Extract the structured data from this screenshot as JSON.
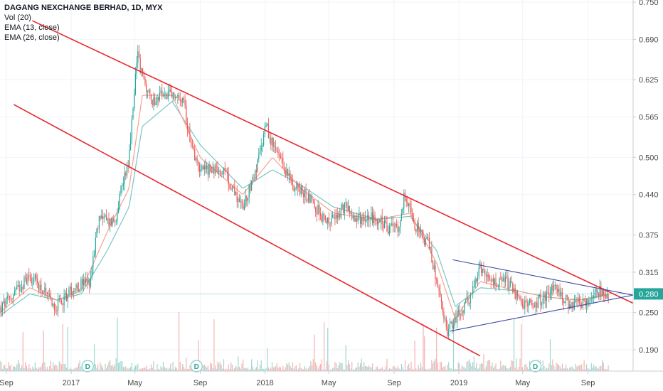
{
  "legend": {
    "title": "DAGANG NEXCHANGE BERHAD, 1D, MYX",
    "indicators": [
      "Vol (20)",
      "EMA (13, close)",
      "EMA (26, close)"
    ]
  },
  "chart_data": {
    "type": "candlestick",
    "symbol": "DAGANG NEXCHANGE BERHAD",
    "interval": "1D",
    "exchange": "MYX",
    "last_price": "0.280",
    "y_ticks": [
      "0.750",
      "0.690",
      "0.625",
      "0.565",
      "0.500",
      "0.440",
      "0.375",
      "0.315",
      "0.250",
      "0.190"
    ],
    "x_ticks": [
      "Sep",
      "2017",
      "May",
      "Sep",
      "2018",
      "May",
      "Sep",
      "2019",
      "May",
      "Sep"
    ],
    "ylim": [
      0.16,
      0.75
    ],
    "event_markers": [
      "D",
      "D",
      "D"
    ],
    "price_path": [
      [
        "2016-08-20",
        0.255
      ],
      [
        "2016-09-05",
        0.27
      ],
      [
        "2016-09-25",
        0.29
      ],
      [
        "2016-10-15",
        0.31
      ],
      [
        "2016-11-01",
        0.295
      ],
      [
        "2016-11-20",
        0.27
      ],
      [
        "2016-12-05",
        0.26
      ],
      [
        "2016-12-20",
        0.275
      ],
      [
        "2017-01-05",
        0.29
      ],
      [
        "2017-01-20",
        0.295
      ],
      [
        "2017-02-05",
        0.3
      ],
      [
        "2017-02-15",
        0.36
      ],
      [
        "2017-02-25",
        0.41
      ],
      [
        "2017-03-10",
        0.395
      ],
      [
        "2017-03-25",
        0.4
      ],
      [
        "2017-04-05",
        0.45
      ],
      [
        "2017-04-20",
        0.5
      ],
      [
        "2017-05-01",
        0.62
      ],
      [
        "2017-05-05",
        0.67
      ],
      [
        "2017-05-15",
        0.63
      ],
      [
        "2017-06-01",
        0.59
      ],
      [
        "2017-06-20",
        0.6
      ],
      [
        "2017-07-10",
        0.6
      ],
      [
        "2017-08-01",
        0.585
      ],
      [
        "2017-08-15",
        0.52
      ],
      [
        "2017-09-01",
        0.48
      ],
      [
        "2017-09-20",
        0.48
      ],
      [
        "2017-10-15",
        0.475
      ],
      [
        "2017-11-01",
        0.45
      ],
      [
        "2017-11-20",
        0.42
      ],
      [
        "2017-12-10",
        0.47
      ],
      [
        "2017-12-25",
        0.51
      ],
      [
        "2018-01-01",
        0.555
      ],
      [
        "2018-01-15",
        0.52
      ],
      [
        "2018-02-01",
        0.49
      ],
      [
        "2018-02-20",
        0.46
      ],
      [
        "2018-03-10",
        0.445
      ],
      [
        "2018-04-01",
        0.43
      ],
      [
        "2018-04-20",
        0.4
      ],
      [
        "2018-05-10",
        0.4
      ],
      [
        "2018-06-01",
        0.42
      ],
      [
        "2018-06-20",
        0.4
      ],
      [
        "2018-07-10",
        0.405
      ],
      [
        "2018-08-01",
        0.4
      ],
      [
        "2018-08-20",
        0.385
      ],
      [
        "2018-09-10",
        0.39
      ],
      [
        "2018-09-20",
        0.44
      ],
      [
        "2018-10-01",
        0.41
      ],
      [
        "2018-10-20",
        0.375
      ],
      [
        "2018-11-05",
        0.36
      ],
      [
        "2018-11-20",
        0.3
      ],
      [
        "2018-12-01",
        0.25
      ],
      [
        "2018-12-10",
        0.22
      ],
      [
        "2018-12-25",
        0.24
      ],
      [
        "2019-01-10",
        0.255
      ],
      [
        "2019-01-25",
        0.28
      ],
      [
        "2019-02-10",
        0.32
      ],
      [
        "2019-02-25",
        0.3
      ],
      [
        "2019-03-15",
        0.295
      ],
      [
        "2019-04-01",
        0.3
      ],
      [
        "2019-04-20",
        0.275
      ],
      [
        "2019-05-05",
        0.26
      ],
      [
        "2019-05-25",
        0.265
      ],
      [
        "2019-06-15",
        0.28
      ],
      [
        "2019-07-05",
        0.29
      ],
      [
        "2019-07-25",
        0.265
      ],
      [
        "2019-08-15",
        0.265
      ],
      [
        "2019-09-05",
        0.27
      ],
      [
        "2019-09-25",
        0.285
      ],
      [
        "2019-10-10",
        0.28
      ]
    ],
    "ema13_path": [
      [
        "2016-08-20",
        0.25
      ],
      [
        "2016-10-15",
        0.29
      ],
      [
        "2016-12-05",
        0.27
      ],
      [
        "2017-01-20",
        0.285
      ],
      [
        "2017-03-10",
        0.38
      ],
      [
        "2017-04-20",
        0.45
      ],
      [
        "2017-05-15",
        0.6
      ],
      [
        "2017-07-10",
        0.6
      ],
      [
        "2017-09-01",
        0.5
      ],
      [
        "2017-11-20",
        0.44
      ],
      [
        "2018-01-15",
        0.5
      ],
      [
        "2018-03-10",
        0.45
      ],
      [
        "2018-05-10",
        0.41
      ],
      [
        "2018-08-01",
        0.4
      ],
      [
        "2018-10-01",
        0.41
      ],
      [
        "2018-11-20",
        0.33
      ],
      [
        "2018-12-25",
        0.24
      ],
      [
        "2019-02-10",
        0.3
      ],
      [
        "2019-04-20",
        0.285
      ],
      [
        "2019-06-15",
        0.275
      ],
      [
        "2019-08-15",
        0.27
      ],
      [
        "2019-10-10",
        0.28
      ]
    ],
    "ema26_path": [
      [
        "2016-08-20",
        0.245
      ],
      [
        "2016-10-15",
        0.28
      ],
      [
        "2016-12-05",
        0.27
      ],
      [
        "2017-01-20",
        0.28
      ],
      [
        "2017-03-10",
        0.35
      ],
      [
        "2017-04-20",
        0.42
      ],
      [
        "2017-05-15",
        0.55
      ],
      [
        "2017-07-10",
        0.59
      ],
      [
        "2017-09-01",
        0.52
      ],
      [
        "2017-11-20",
        0.45
      ],
      [
        "2018-01-15",
        0.48
      ],
      [
        "2018-03-10",
        0.455
      ],
      [
        "2018-05-10",
        0.42
      ],
      [
        "2018-08-01",
        0.4
      ],
      [
        "2018-10-01",
        0.405
      ],
      [
        "2018-11-20",
        0.35
      ],
      [
        "2018-12-25",
        0.26
      ],
      [
        "2019-02-10",
        0.29
      ],
      [
        "2019-04-20",
        0.285
      ],
      [
        "2019-06-15",
        0.275
      ],
      [
        "2019-08-15",
        0.27
      ],
      [
        "2019-10-10",
        0.278
      ]
    ],
    "trendlines": [
      {
        "name": "channel-upper",
        "color": "#e8272c",
        "points": [
          [
            "2016-10-20",
            0.72
          ],
          [
            "2019-11-25",
            0.265
          ]
        ]
      },
      {
        "name": "channel-lower",
        "color": "#e8272c",
        "points": [
          [
            "2016-09-15",
            0.585
          ],
          [
            "2019-02-10",
            0.18
          ]
        ]
      },
      {
        "name": "triangle-upper",
        "color": "#3f4aa0",
        "points": [
          [
            "2018-12-20",
            0.335
          ],
          [
            "2019-11-25",
            0.278
          ]
        ]
      },
      {
        "name": "triangle-lower",
        "color": "#3f4aa0",
        "points": [
          [
            "2018-12-15",
            0.22
          ],
          [
            "2019-11-25",
            0.278
          ]
        ]
      }
    ],
    "colors": {
      "up": "#26a69a",
      "down": "#ef5350",
      "ema13": "#f5a38f",
      "ema26": "#79c6c6",
      "last_price_bg": "#26a69a"
    }
  }
}
